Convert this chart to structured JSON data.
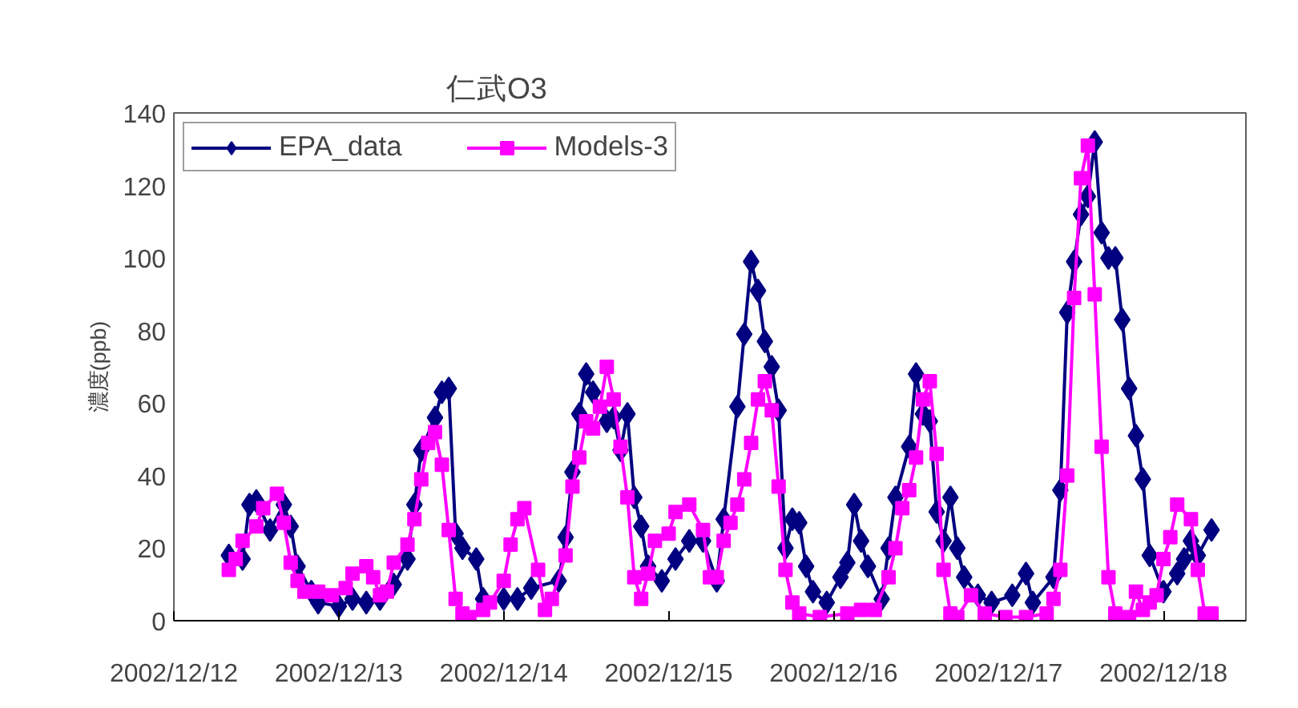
{
  "chart_data": {
    "type": "line",
    "title": "仁武O3",
    "ylabel": "濃度(ppb)",
    "xlim": [
      "2002-12-12T00:00",
      "2002-12-18T12:00"
    ],
    "xticks": [
      {
        "value": "2002-12-12",
        "label": "2002/12/12"
      },
      {
        "value": "2002-12-13",
        "label": "2002/12/13"
      },
      {
        "value": "2002-12-14",
        "label": "2002/12/14"
      },
      {
        "value": "2002-12-15",
        "label": "2002/12/15"
      },
      {
        "value": "2002-12-16",
        "label": "2002/12/16"
      },
      {
        "value": "2002-12-17",
        "label": "2002/12/17"
      },
      {
        "value": "2002-12-18",
        "label": "2002/12/18"
      }
    ],
    "ylim": [
      0,
      140
    ],
    "yticks": [
      0,
      20,
      40,
      60,
      80,
      100,
      120,
      140
    ],
    "legend": "top left",
    "series": [
      {
        "name": "EPA_data",
        "color": "#000080",
        "marker": "diamond",
        "x": [
          "2002-12-12T08:00",
          "2002-12-12T10:00",
          "2002-12-12T11:00",
          "2002-12-12T12:00",
          "2002-12-12T14:00",
          "2002-12-12T16:00",
          "2002-12-12T17:00",
          "2002-12-12T18:00",
          "2002-12-12T20:00",
          "2002-12-12T21:00",
          "2002-12-13T00:00",
          "2002-12-13T02:00",
          "2002-12-13T04:00",
          "2002-12-13T06:00",
          "2002-12-13T08:00",
          "2002-12-13T10:00",
          "2002-12-13T11:00",
          "2002-12-13T12:00",
          "2002-12-13T14:00",
          "2002-12-13T15:00",
          "2002-12-13T16:00",
          "2002-12-13T17:00",
          "2002-12-13T18:00",
          "2002-12-13T20:00",
          "2002-12-13T21:00",
          "2002-12-14T00:00",
          "2002-12-14T02:00",
          "2002-12-14T04:00",
          "2002-12-14T08:00",
          "2002-12-14T09:00",
          "2002-12-14T10:00",
          "2002-12-14T11:00",
          "2002-12-14T12:00",
          "2002-12-14T13:00",
          "2002-12-14T15:00",
          "2002-12-14T16:00",
          "2002-12-14T17:00",
          "2002-12-14T18:00",
          "2002-12-14T19:00",
          "2002-12-14T20:00",
          "2002-12-14T21:00",
          "2002-12-14T23:00",
          "2002-12-15T01:00",
          "2002-12-15T03:00",
          "2002-12-15T05:00",
          "2002-12-15T07:00",
          "2002-12-15T08:00",
          "2002-12-15T10:00",
          "2002-12-15T11:00",
          "2002-12-15T12:00",
          "2002-12-15T13:00",
          "2002-12-15T14:00",
          "2002-12-15T15:00",
          "2002-12-15T16:00",
          "2002-12-15T17:00",
          "2002-12-15T18:00",
          "2002-12-15T19:00",
          "2002-12-15T20:00",
          "2002-12-15T21:00",
          "2002-12-15T23:00",
          "2002-12-16T01:00",
          "2002-12-16T02:00",
          "2002-12-16T03:00",
          "2002-12-16T04:00",
          "2002-12-16T05:00",
          "2002-12-16T07:00",
          "2002-12-16T08:00",
          "2002-12-16T09:00",
          "2002-12-16T11:00",
          "2002-12-16T12:00",
          "2002-12-16T13:00",
          "2002-12-16T14:00",
          "2002-12-16T15:00",
          "2002-12-16T16:00",
          "2002-12-16T17:00",
          "2002-12-16T18:00",
          "2002-12-16T19:00",
          "2002-12-16T21:00",
          "2002-12-16T23:00",
          "2002-12-17T02:00",
          "2002-12-17T04:00",
          "2002-12-17T05:00",
          "2002-12-17T08:00",
          "2002-12-17T09:00",
          "2002-12-17T10:00",
          "2002-12-17T11:00",
          "2002-12-17T12:00",
          "2002-12-17T13:00",
          "2002-12-17T14:00",
          "2002-12-17T15:00",
          "2002-12-17T16:00",
          "2002-12-17T17:00",
          "2002-12-17T18:00",
          "2002-12-17T19:00",
          "2002-12-17T20:00",
          "2002-12-17T21:00",
          "2002-12-17T22:00",
          "2002-12-18T00:00",
          "2002-12-18T02:00",
          "2002-12-18T03:00",
          "2002-12-18T04:00",
          "2002-12-18T05:00",
          "2002-12-18T07:00"
        ],
        "values": [
          18,
          17,
          32,
          33,
          25,
          32,
          26,
          15,
          8,
          5,
          4,
          6,
          5,
          6,
          10,
          17,
          32,
          47,
          56,
          63,
          64,
          24,
          20,
          17,
          6,
          6,
          6,
          9,
          11,
          23,
          41,
          57,
          68,
          63,
          55,
          56,
          47,
          57,
          34,
          26,
          15,
          11,
          17,
          22,
          22,
          11,
          28,
          59,
          79,
          99,
          91,
          77,
          70,
          58,
          20,
          28,
          27,
          15,
          8,
          5,
          12,
          16,
          32,
          22,
          15,
          6,
          20,
          34,
          48,
          68,
          57,
          55,
          30,
          22,
          34,
          20,
          12,
          7,
          5,
          7,
          13,
          5,
          12,
          36,
          85,
          99,
          112,
          117,
          132,
          107,
          100,
          100,
          83,
          64,
          51,
          39,
          18,
          8,
          13,
          17,
          22,
          18,
          25
        ]
      },
      {
        "name": "Models-3",
        "color": "#ff00ff",
        "marker": "square",
        "x": [
          "2002-12-12T08:00",
          "2002-12-12T09:00",
          "2002-12-12T10:00",
          "2002-12-12T12:00",
          "2002-12-12T13:00",
          "2002-12-12T15:00",
          "2002-12-12T16:00",
          "2002-12-12T17:00",
          "2002-12-12T18:00",
          "2002-12-12T19:00",
          "2002-12-12T21:00",
          "2002-12-12T23:00",
          "2002-12-13T01:00",
          "2002-12-13T02:00",
          "2002-12-13T04:00",
          "2002-12-13T05:00",
          "2002-12-13T06:00",
          "2002-12-13T07:00",
          "2002-12-13T08:00",
          "2002-12-13T10:00",
          "2002-12-13T11:00",
          "2002-12-13T12:00",
          "2002-12-13T13:00",
          "2002-12-13T14:00",
          "2002-12-13T15:00",
          "2002-12-13T16:00",
          "2002-12-13T17:00",
          "2002-12-13T18:00",
          "2002-12-13T19:00",
          "2002-12-13T21:00",
          "2002-12-13T22:00",
          "2002-12-14T00:00",
          "2002-12-14T01:00",
          "2002-12-14T02:00",
          "2002-12-14T03:00",
          "2002-12-14T05:00",
          "2002-12-14T06:00",
          "2002-12-14T07:00",
          "2002-12-14T09:00",
          "2002-12-14T10:00",
          "2002-12-14T11:00",
          "2002-12-14T12:00",
          "2002-12-14T13:00",
          "2002-12-14T14:00",
          "2002-12-14T15:00",
          "2002-12-14T16:00",
          "2002-12-14T17:00",
          "2002-12-14T18:00",
          "2002-12-14T19:00",
          "2002-12-14T20:00",
          "2002-12-14T21:00",
          "2002-12-14T22:00",
          "2002-12-15T00:00",
          "2002-12-15T01:00",
          "2002-12-15T03:00",
          "2002-12-15T05:00",
          "2002-12-15T06:00",
          "2002-12-15T07:00",
          "2002-12-15T08:00",
          "2002-12-15T09:00",
          "2002-12-15T10:00",
          "2002-12-15T11:00",
          "2002-12-15T12:00",
          "2002-12-15T13:00",
          "2002-12-15T14:00",
          "2002-12-15T15:00",
          "2002-12-15T16:00",
          "2002-12-15T17:00",
          "2002-12-15T18:00",
          "2002-12-15T19:00",
          "2002-12-15T22:00",
          "2002-12-16T02:00",
          "2002-12-16T04:00",
          "2002-12-16T06:00",
          "2002-12-16T08:00",
          "2002-12-16T09:00",
          "2002-12-16T10:00",
          "2002-12-16T11:00",
          "2002-12-16T12:00",
          "2002-12-16T13:00",
          "2002-12-16T14:00",
          "2002-12-16T15:00",
          "2002-12-16T16:00",
          "2002-12-16T17:00",
          "2002-12-16T18:00",
          "2002-12-16T20:00",
          "2002-12-16T22:00",
          "2002-12-17T01:00",
          "2002-12-17T04:00",
          "2002-12-17T07:00",
          "2002-12-17T08:00",
          "2002-12-17T09:00",
          "2002-12-17T10:00",
          "2002-12-17T11:00",
          "2002-12-17T12:00",
          "2002-12-17T13:00",
          "2002-12-17T14:00",
          "2002-12-17T15:00",
          "2002-12-17T16:00",
          "2002-12-17T17:00",
          "2002-12-17T19:00",
          "2002-12-17T20:00",
          "2002-12-17T21:00",
          "2002-12-17T22:00",
          "2002-12-17T23:00",
          "2002-12-18T00:00",
          "2002-12-18T01:00",
          "2002-12-18T02:00",
          "2002-12-18T04:00",
          "2002-12-18T05:00",
          "2002-12-18T06:00",
          "2002-12-18T07:00"
        ],
        "values": [
          14,
          17,
          22,
          26,
          31,
          35,
          27,
          16,
          11,
          8,
          8,
          7,
          9,
          13,
          15,
          12,
          7,
          8,
          16,
          21,
          28,
          39,
          49,
          52,
          43,
          25,
          6,
          2,
          1,
          3,
          5,
          11,
          21,
          28,
          31,
          14,
          3,
          6,
          18,
          37,
          45,
          55,
          53,
          59,
          70,
          61,
          48,
          34,
          12,
          6,
          13,
          22,
          24,
          30,
          32,
          25,
          12,
          12,
          22,
          27,
          32,
          39,
          49,
          61,
          66,
          58,
          37,
          14,
          5,
          2,
          1,
          2,
          3,
          3,
          12,
          20,
          31,
          36,
          45,
          61,
          66,
          46,
          14,
          2,
          1,
          7,
          2,
          1,
          1,
          2,
          6,
          14,
          40,
          89,
          122,
          131,
          90,
          48,
          12,
          2,
          1,
          8,
          3,
          5,
          7,
          17,
          23,
          32,
          28,
          14,
          2,
          2
        ]
      }
    ]
  }
}
